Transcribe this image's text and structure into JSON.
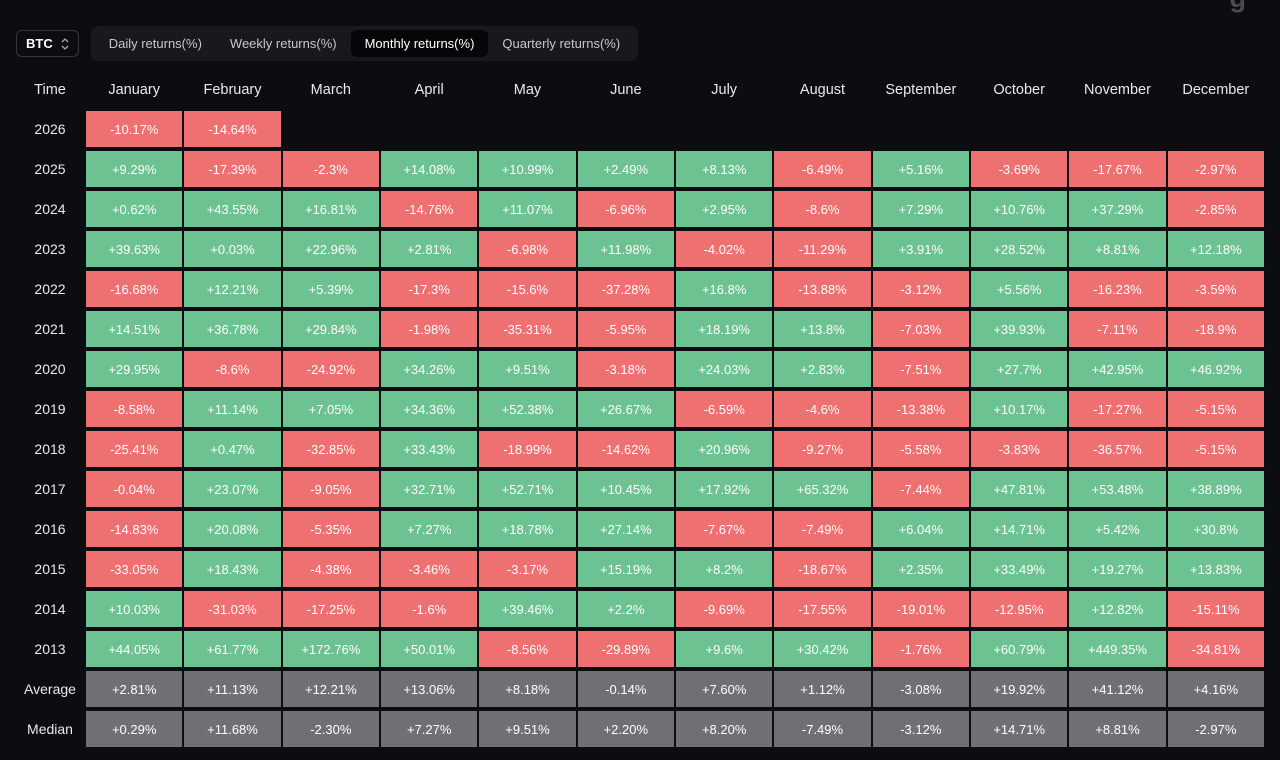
{
  "header": {
    "partial_text": "g"
  },
  "selector": {
    "value": "BTC"
  },
  "tabs": [
    {
      "label": "Daily returns(%)",
      "active": false
    },
    {
      "label": "Weekly returns(%)",
      "active": false
    },
    {
      "label": "Monthly returns(%)",
      "active": true
    },
    {
      "label": "Quarterly returns(%)",
      "active": false
    }
  ],
  "colors": {
    "positive": "#6dc292",
    "negative": "#ee7070",
    "summary": "#6e7073",
    "cell_text": "#ffffff",
    "background": "#0b0d11"
  },
  "chart_data": {
    "type": "heatmap",
    "title": "BTC Monthly returns(%)",
    "row_label_header": "Time",
    "columns": [
      "January",
      "February",
      "March",
      "April",
      "May",
      "June",
      "July",
      "August",
      "September",
      "October",
      "November",
      "December"
    ],
    "rows": [
      {
        "label": "2026",
        "summary": false,
        "values": [
          "-10.17%",
          "-14.64%",
          "",
          "",
          "",
          "",
          "",
          "",
          "",
          "",
          "",
          ""
        ]
      },
      {
        "label": "2025",
        "summary": false,
        "values": [
          "+9.29%",
          "-17.39%",
          "-2.3%",
          "+14.08%",
          "+10.99%",
          "+2.49%",
          "+8.13%",
          "-6.49%",
          "+5.16%",
          "-3.69%",
          "-17.67%",
          "-2.97%"
        ]
      },
      {
        "label": "2024",
        "summary": false,
        "values": [
          "+0.62%",
          "+43.55%",
          "+16.81%",
          "-14.76%",
          "+11.07%",
          "-6.96%",
          "+2.95%",
          "-8.6%",
          "+7.29%",
          "+10.76%",
          "+37.29%",
          "-2.85%"
        ]
      },
      {
        "label": "2023",
        "summary": false,
        "values": [
          "+39.63%",
          "+0.03%",
          "+22.96%",
          "+2.81%",
          "-6.98%",
          "+11.98%",
          "-4.02%",
          "-11.29%",
          "+3.91%",
          "+28.52%",
          "+8.81%",
          "+12.18%"
        ]
      },
      {
        "label": "2022",
        "summary": false,
        "values": [
          "-16.68%",
          "+12.21%",
          "+5.39%",
          "-17.3%",
          "-15.6%",
          "-37.28%",
          "+16.8%",
          "-13.88%",
          "-3.12%",
          "+5.56%",
          "-16.23%",
          "-3.59%"
        ]
      },
      {
        "label": "2021",
        "summary": false,
        "values": [
          "+14.51%",
          "+36.78%",
          "+29.84%",
          "-1.98%",
          "-35.31%",
          "-5.95%",
          "+18.19%",
          "+13.8%",
          "-7.03%",
          "+39.93%",
          "-7.11%",
          "-18.9%"
        ]
      },
      {
        "label": "2020",
        "summary": false,
        "values": [
          "+29.95%",
          "-8.6%",
          "-24.92%",
          "+34.26%",
          "+9.51%",
          "-3.18%",
          "+24.03%",
          "+2.83%",
          "-7.51%",
          "+27.7%",
          "+42.95%",
          "+46.92%"
        ]
      },
      {
        "label": "2019",
        "summary": false,
        "values": [
          "-8.58%",
          "+11.14%",
          "+7.05%",
          "+34.36%",
          "+52.38%",
          "+26.67%",
          "-6.59%",
          "-4.6%",
          "-13.38%",
          "+10.17%",
          "-17.27%",
          "-5.15%"
        ]
      },
      {
        "label": "2018",
        "summary": false,
        "values": [
          "-25.41%",
          "+0.47%",
          "-32.85%",
          "+33.43%",
          "-18.99%",
          "-14.62%",
          "+20.96%",
          "-9.27%",
          "-5.58%",
          "-3.83%",
          "-36.57%",
          "-5.15%"
        ]
      },
      {
        "label": "2017",
        "summary": false,
        "values": [
          "-0.04%",
          "+23.07%",
          "-9.05%",
          "+32.71%",
          "+52.71%",
          "+10.45%",
          "+17.92%",
          "+65.32%",
          "-7.44%",
          "+47.81%",
          "+53.48%",
          "+38.89%"
        ]
      },
      {
        "label": "2016",
        "summary": false,
        "values": [
          "-14.83%",
          "+20.08%",
          "-5.35%",
          "+7.27%",
          "+18.78%",
          "+27.14%",
          "-7.67%",
          "-7.49%",
          "+6.04%",
          "+14.71%",
          "+5.42%",
          "+30.8%"
        ]
      },
      {
        "label": "2015",
        "summary": false,
        "values": [
          "-33.05%",
          "+18.43%",
          "-4.38%",
          "-3.46%",
          "-3.17%",
          "+15.19%",
          "+8.2%",
          "-18.67%",
          "+2.35%",
          "+33.49%",
          "+19.27%",
          "+13.83%"
        ]
      },
      {
        "label": "2014",
        "summary": false,
        "values": [
          "+10.03%",
          "-31.03%",
          "-17.25%",
          "-1.6%",
          "+39.46%",
          "+2.2%",
          "-9.69%",
          "-17.55%",
          "-19.01%",
          "-12.95%",
          "+12.82%",
          "-15.11%"
        ]
      },
      {
        "label": "2013",
        "summary": false,
        "values": [
          "+44.05%",
          "+61.77%",
          "+172.76%",
          "+50.01%",
          "-8.56%",
          "-29.89%",
          "+9.6%",
          "+30.42%",
          "-1.76%",
          "+60.79%",
          "+449.35%",
          "-34.81%"
        ]
      },
      {
        "label": "Average",
        "summary": true,
        "values": [
          "+2.81%",
          "+11.13%",
          "+12.21%",
          "+13.06%",
          "+8.18%",
          "-0.14%",
          "+7.60%",
          "+1.12%",
          "-3.08%",
          "+19.92%",
          "+41.12%",
          "+4.16%"
        ]
      },
      {
        "label": "Median",
        "summary": true,
        "values": [
          "+0.29%",
          "+11.68%",
          "-2.30%",
          "+7.27%",
          "+9.51%",
          "+2.20%",
          "+8.20%",
          "-7.49%",
          "-3.12%",
          "+14.71%",
          "+8.81%",
          "-2.97%"
        ]
      }
    ]
  }
}
